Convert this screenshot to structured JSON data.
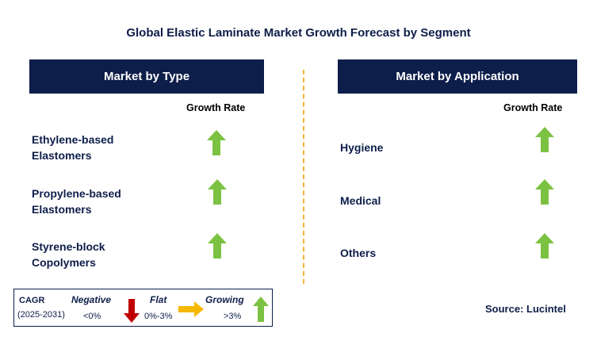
{
  "title": "Global Elastic Laminate Market Growth Forecast by Segment",
  "left_panel": {
    "header": "Market by Type",
    "column_label": "Growth Rate",
    "segments": [
      {
        "line1": "Ethylene-based",
        "line2": "Elastomers",
        "trend": "growing"
      },
      {
        "line1": "Propylene-based",
        "line2": "Elastomers",
        "trend": "growing"
      },
      {
        "line1": "Styrene-block",
        "line2": "Copolymers",
        "trend": "growing"
      }
    ]
  },
  "right_panel": {
    "header": "Market by Application",
    "column_label": "Growth Rate",
    "segments": [
      {
        "label": "Hygiene",
        "trend": "growing"
      },
      {
        "label": "Medical",
        "trend": "growing"
      },
      {
        "label": "Others",
        "trend": "growing"
      }
    ]
  },
  "legend": {
    "cagr_label": "CAGR",
    "period": "(2025-2031)",
    "negative": {
      "label": "Negative",
      "range": "<0%",
      "icon": "red-down-arrow-icon"
    },
    "flat": {
      "label": "Flat",
      "range": "0%-3%",
      "icon": "orange-right-arrow-icon"
    },
    "growing": {
      "label": "Growing",
      "range": ">3%",
      "icon": "green-up-arrow-icon"
    }
  },
  "source": "Source: Lucintel",
  "colors": {
    "navy": "#0e1e4a",
    "growing": "#7cc242",
    "negative": "#c00000",
    "flat": "#f5b800",
    "divider": "#f0b43a"
  }
}
